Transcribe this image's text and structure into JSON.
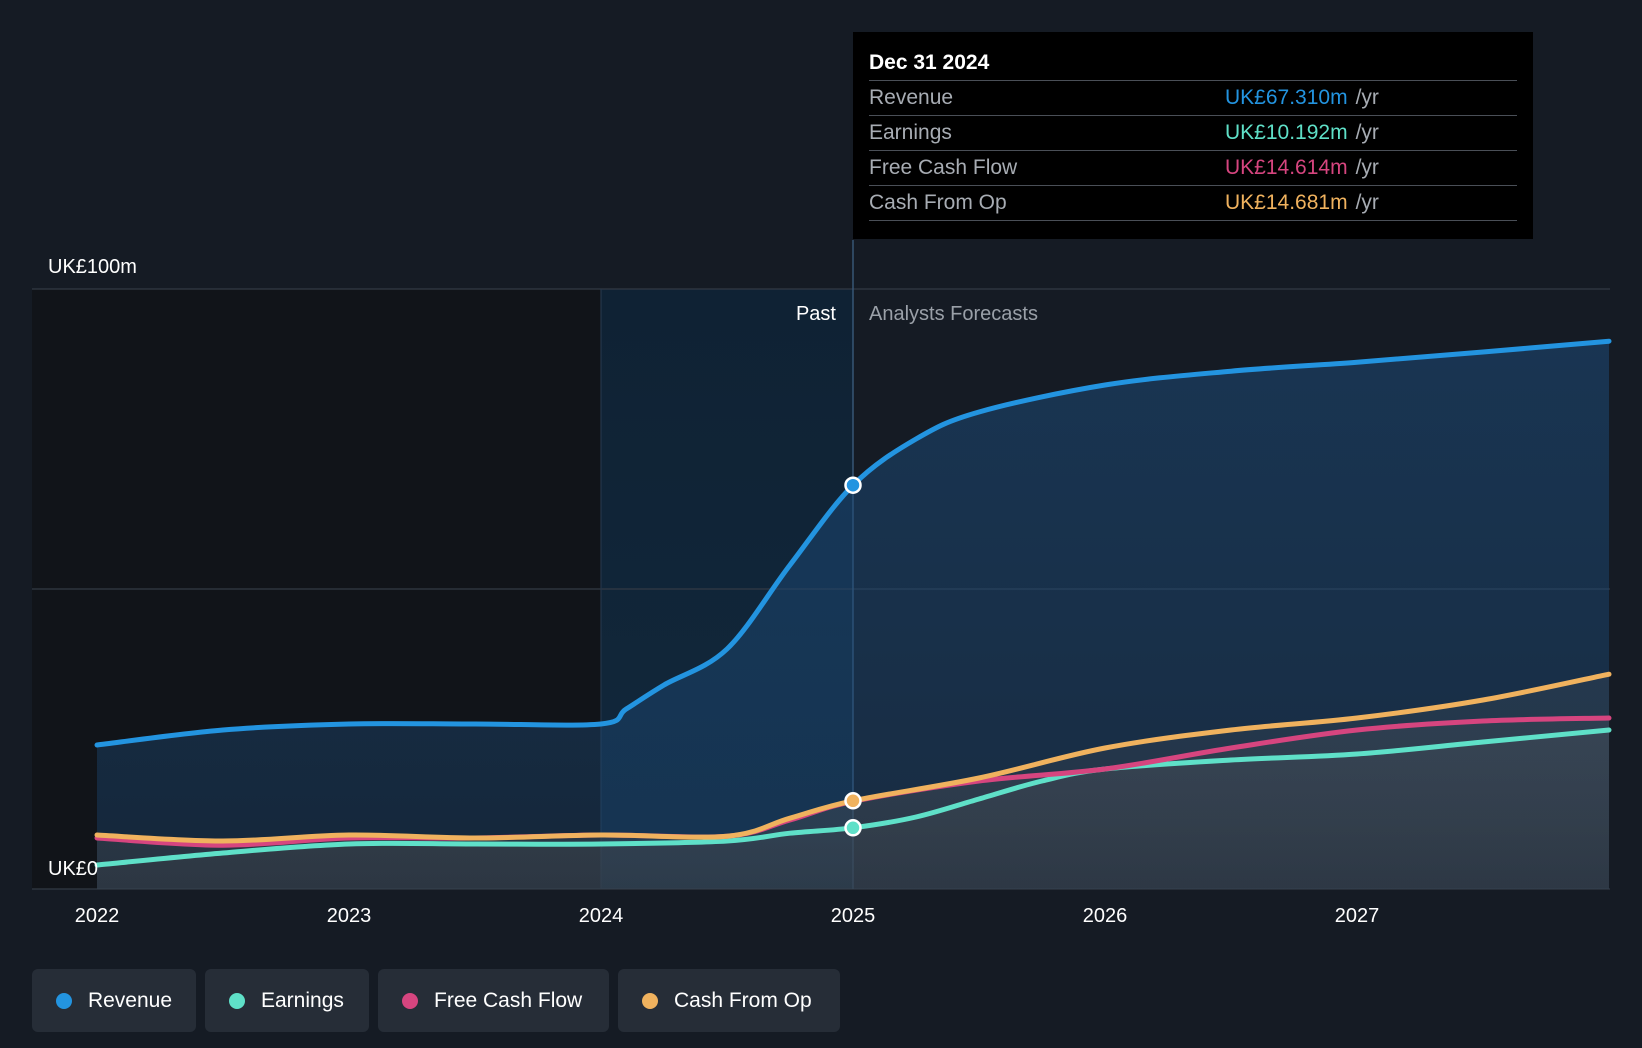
{
  "tooltip": {
    "date": "Dec 31 2024",
    "rows": [
      {
        "name": "Revenue",
        "value": "UK£67.310m",
        "unit": "/yr",
        "color": "#2394e0"
      },
      {
        "name": "Earnings",
        "value": "UK£10.192m",
        "unit": "/yr",
        "color": "#5fe0c8"
      },
      {
        "name": "Free Cash Flow",
        "value": "UK£14.614m",
        "unit": "/yr",
        "color": "#d6457f"
      },
      {
        "name": "Cash From Op",
        "value": "UK£14.681m",
        "unit": "/yr",
        "color": "#f0b25e"
      }
    ]
  },
  "regions": {
    "past": "Past",
    "forecast": "Analysts Forecasts"
  },
  "legend": [
    {
      "label": "Revenue",
      "color": "#2394e0"
    },
    {
      "label": "Earnings",
      "color": "#5fe0c8"
    },
    {
      "label": "Free Cash Flow",
      "color": "#d6457f"
    },
    {
      "label": "Cash From Op",
      "color": "#f0b25e"
    }
  ],
  "colors": {
    "background": "#151b24",
    "revenue": "#2394e0",
    "earnings": "#5fe0c8",
    "free_cash_flow": "#d6457f",
    "cash_from_op": "#f0b25e"
  },
  "chart_data": {
    "type": "line",
    "title": "",
    "xlabel": "",
    "ylabel": "",
    "ylim": [
      0,
      100
    ],
    "y_ticks": [
      {
        "value": 100,
        "label": "UK£100m"
      },
      {
        "value": 50,
        "label": ""
      },
      {
        "value": 0,
        "label": "UK£0"
      }
    ],
    "xlim": [
      2021.75,
      2028
    ],
    "x_ticks": [
      {
        "value": 2022,
        "label": "2022"
      },
      {
        "value": 2023,
        "label": "2023"
      },
      {
        "value": 2024,
        "label": "2024"
      },
      {
        "value": 2025,
        "label": "2025"
      },
      {
        "value": 2026,
        "label": "2026"
      },
      {
        "value": 2027,
        "label": "2027"
      }
    ],
    "past_highlight_start": 2024,
    "forecast_start": 2025,
    "grid": true,
    "legend_position": "bottom-left",
    "series": [
      {
        "name": "Revenue",
        "color": "#2394e0",
        "points": [
          [
            2022,
            24
          ],
          [
            2022.5,
            26.5
          ],
          [
            2023,
            27.5
          ],
          [
            2023.5,
            27.5
          ],
          [
            2024,
            27.5
          ],
          [
            2024.1,
            30
          ],
          [
            2024.25,
            34
          ],
          [
            2024.5,
            40
          ],
          [
            2024.75,
            54
          ],
          [
            2025,
            67.3
          ],
          [
            2025.25,
            75
          ],
          [
            2025.5,
            79.5
          ],
          [
            2026,
            84
          ],
          [
            2026.5,
            86.3
          ],
          [
            2027,
            87.8
          ],
          [
            2027.5,
            89.5
          ],
          [
            2028,
            91.3
          ]
        ]
      },
      {
        "name": "Earnings",
        "color": "#5fe0c8",
        "points": [
          [
            2022,
            4
          ],
          [
            2022.5,
            6
          ],
          [
            2023,
            7.5
          ],
          [
            2023.5,
            7.5
          ],
          [
            2024,
            7.5
          ],
          [
            2024.5,
            8
          ],
          [
            2024.75,
            9.3
          ],
          [
            2025,
            10.2
          ],
          [
            2025.25,
            12
          ],
          [
            2025.5,
            15
          ],
          [
            2025.75,
            18
          ],
          [
            2026,
            20
          ],
          [
            2026.5,
            21.5
          ],
          [
            2027,
            22.5
          ],
          [
            2027.5,
            24.5
          ],
          [
            2028,
            26.5
          ]
        ]
      },
      {
        "name": "Free Cash Flow",
        "color": "#d6457f",
        "points": [
          [
            2022,
            8.5
          ],
          [
            2022.5,
            7.3
          ],
          [
            2023,
            8.5
          ],
          [
            2023.5,
            8.5
          ],
          [
            2024,
            9
          ],
          [
            2024.5,
            8.8
          ],
          [
            2024.75,
            11.5
          ],
          [
            2025,
            14.6
          ],
          [
            2025.5,
            18
          ],
          [
            2026,
            20
          ],
          [
            2026.5,
            23.5
          ],
          [
            2027,
            26.5
          ],
          [
            2027.5,
            28
          ],
          [
            2028,
            28.5
          ]
        ]
      },
      {
        "name": "Cash From Op",
        "color": "#f0b25e",
        "points": [
          [
            2022,
            9
          ],
          [
            2022.5,
            8
          ],
          [
            2023,
            9
          ],
          [
            2023.5,
            8.5
          ],
          [
            2024,
            9
          ],
          [
            2024.5,
            8.8
          ],
          [
            2024.75,
            11.8
          ],
          [
            2025,
            14.7
          ],
          [
            2025.5,
            18.5
          ],
          [
            2026,
            23.5
          ],
          [
            2026.5,
            26.5
          ],
          [
            2027,
            28.5
          ],
          [
            2027.5,
            31.5
          ],
          [
            2028,
            35.8
          ]
        ]
      }
    ]
  }
}
